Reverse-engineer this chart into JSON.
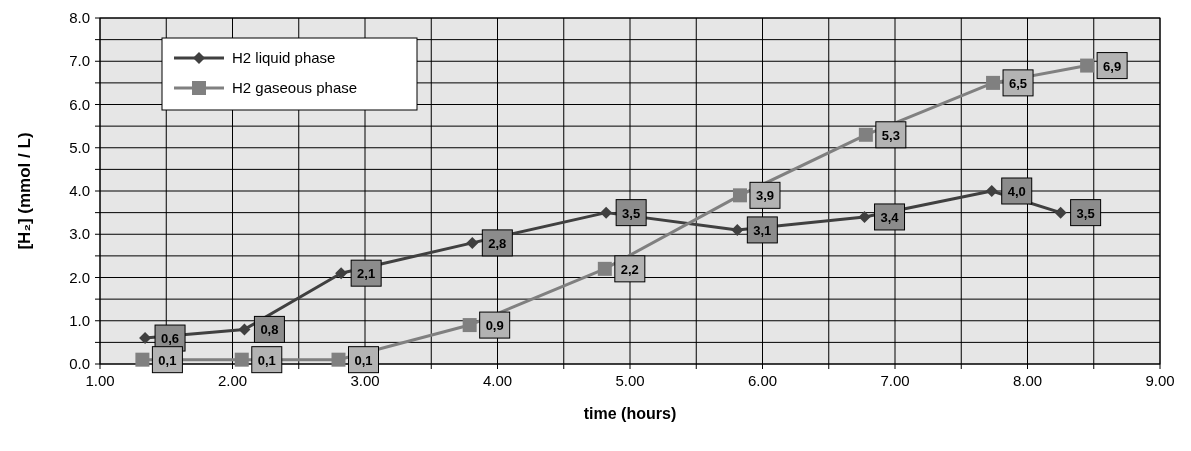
{
  "chart_data": {
    "type": "line",
    "xlabel": "time (hours)",
    "ylabel": "[H₂]  (mmol / L)",
    "xlim": [
      1,
      9
    ],
    "ylim": [
      0,
      8
    ],
    "xticks": [
      {
        "value": 1,
        "label": "1.00"
      },
      {
        "value": 1.5,
        "label": null
      },
      {
        "value": 2,
        "label": "2.00"
      },
      {
        "value": 2.5,
        "label": null
      },
      {
        "value": 3,
        "label": "3.00"
      },
      {
        "value": 3.5,
        "label": null
      },
      {
        "value": 4,
        "label": "4.00"
      },
      {
        "value": 4.5,
        "label": null
      },
      {
        "value": 5,
        "label": "5.00"
      },
      {
        "value": 5.5,
        "label": null
      },
      {
        "value": 6,
        "label": "6.00"
      },
      {
        "value": 6.5,
        "label": null
      },
      {
        "value": 7,
        "label": "7.00"
      },
      {
        "value": 7.5,
        "label": null
      },
      {
        "value": 8,
        "label": "8.00"
      },
      {
        "value": 8.5,
        "label": null
      },
      {
        "value": 9,
        "label": "9.00"
      }
    ],
    "yticks": [
      {
        "value": 0,
        "label": "0.0"
      },
      {
        "value": 0.5,
        "label": null
      },
      {
        "value": 1,
        "label": "1.0"
      },
      {
        "value": 1.5,
        "label": null
      },
      {
        "value": 2,
        "label": "2.0"
      },
      {
        "value": 2.5,
        "label": null
      },
      {
        "value": 3,
        "label": "3.0"
      },
      {
        "value": 3.5,
        "label": null
      },
      {
        "value": 4,
        "label": "4.0"
      },
      {
        "value": 4.5,
        "label": null
      },
      {
        "value": 5,
        "label": "5.0"
      },
      {
        "value": 5.5,
        "label": null
      },
      {
        "value": 6,
        "label": "6.0"
      },
      {
        "value": 6.5,
        "label": null
      },
      {
        "value": 7,
        "label": "7.0"
      },
      {
        "value": 7.5,
        "label": null
      },
      {
        "value": 8,
        "label": "8.0"
      }
    ],
    "grid": true,
    "legend": "top left",
    "series": [
      {
        "name": "H2 liquid phase",
        "color": "#404040",
        "marker": "diamond",
        "x": [
          1.34,
          2.09,
          2.82,
          3.81,
          4.82,
          5.81,
          6.77,
          7.73,
          8.25
        ],
        "values": [
          0.6,
          0.8,
          2.1,
          2.8,
          3.5,
          3.1,
          3.4,
          4.0,
          3.5
        ],
        "value_labels": [
          "0,6",
          "0,8",
          "2,1",
          "2,8",
          "3,5",
          "3,1",
          "3,4",
          "4,0",
          "3,5"
        ]
      },
      {
        "name": "H2 gaseous phase",
        "color": "#808080",
        "marker": "square",
        "x": [
          1.32,
          2.07,
          2.8,
          3.79,
          4.81,
          5.83,
          6.78,
          7.74,
          8.45
        ],
        "values": [
          0.1,
          0.1,
          0.1,
          0.9,
          2.2,
          3.9,
          5.3,
          6.5,
          6.9
        ],
        "value_labels": [
          "0,1",
          "0,1",
          "0,1",
          "0,9",
          "2,2",
          "3,9",
          "5,3",
          "6,5",
          "6,9"
        ]
      }
    ]
  }
}
